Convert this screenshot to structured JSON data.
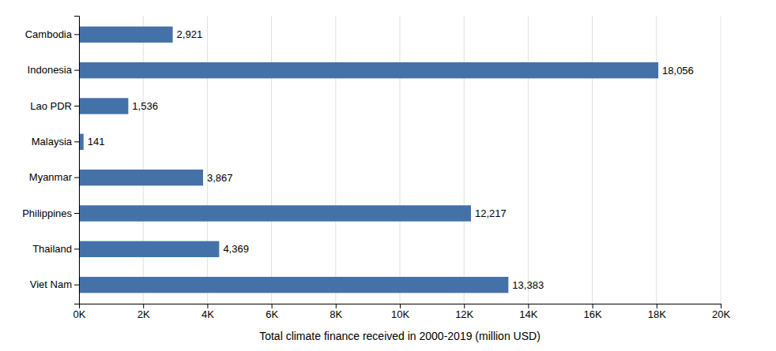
{
  "chart_data": {
    "type": "bar",
    "orientation": "horizontal",
    "categories": [
      "Cambodia",
      "Indonesia",
      "Lao PDR",
      "Malaysia",
      "Myanmar",
      "Philippines",
      "Thailand",
      "Viet Nam"
    ],
    "values": [
      2921,
      18056,
      1536,
      141,
      3867,
      12217,
      4369,
      13383
    ],
    "value_labels": [
      "2,921",
      "18,056",
      "1,536",
      "141",
      "3,867",
      "12,217",
      "4,369",
      "13,383"
    ],
    "data_labels": true,
    "color": "#4472a8",
    "xlabel": "Total climate finance received in 2000-2019 (million USD)",
    "xlim": [
      0,
      20000
    ],
    "xticks": [
      {
        "value": 0,
        "label": "0K"
      },
      {
        "value": 2000,
        "label": "2K"
      },
      {
        "value": 4000,
        "label": "4K"
      },
      {
        "value": 6000,
        "label": "6K"
      },
      {
        "value": 8000,
        "label": "8K"
      },
      {
        "value": 10000,
        "label": "10K"
      },
      {
        "value": 12000,
        "label": "12K"
      },
      {
        "value": 14000,
        "label": "14K"
      },
      {
        "value": 16000,
        "label": "16K"
      },
      {
        "value": 18000,
        "label": "18K"
      },
      {
        "value": 20000,
        "label": "20K"
      }
    ],
    "grid": true
  }
}
